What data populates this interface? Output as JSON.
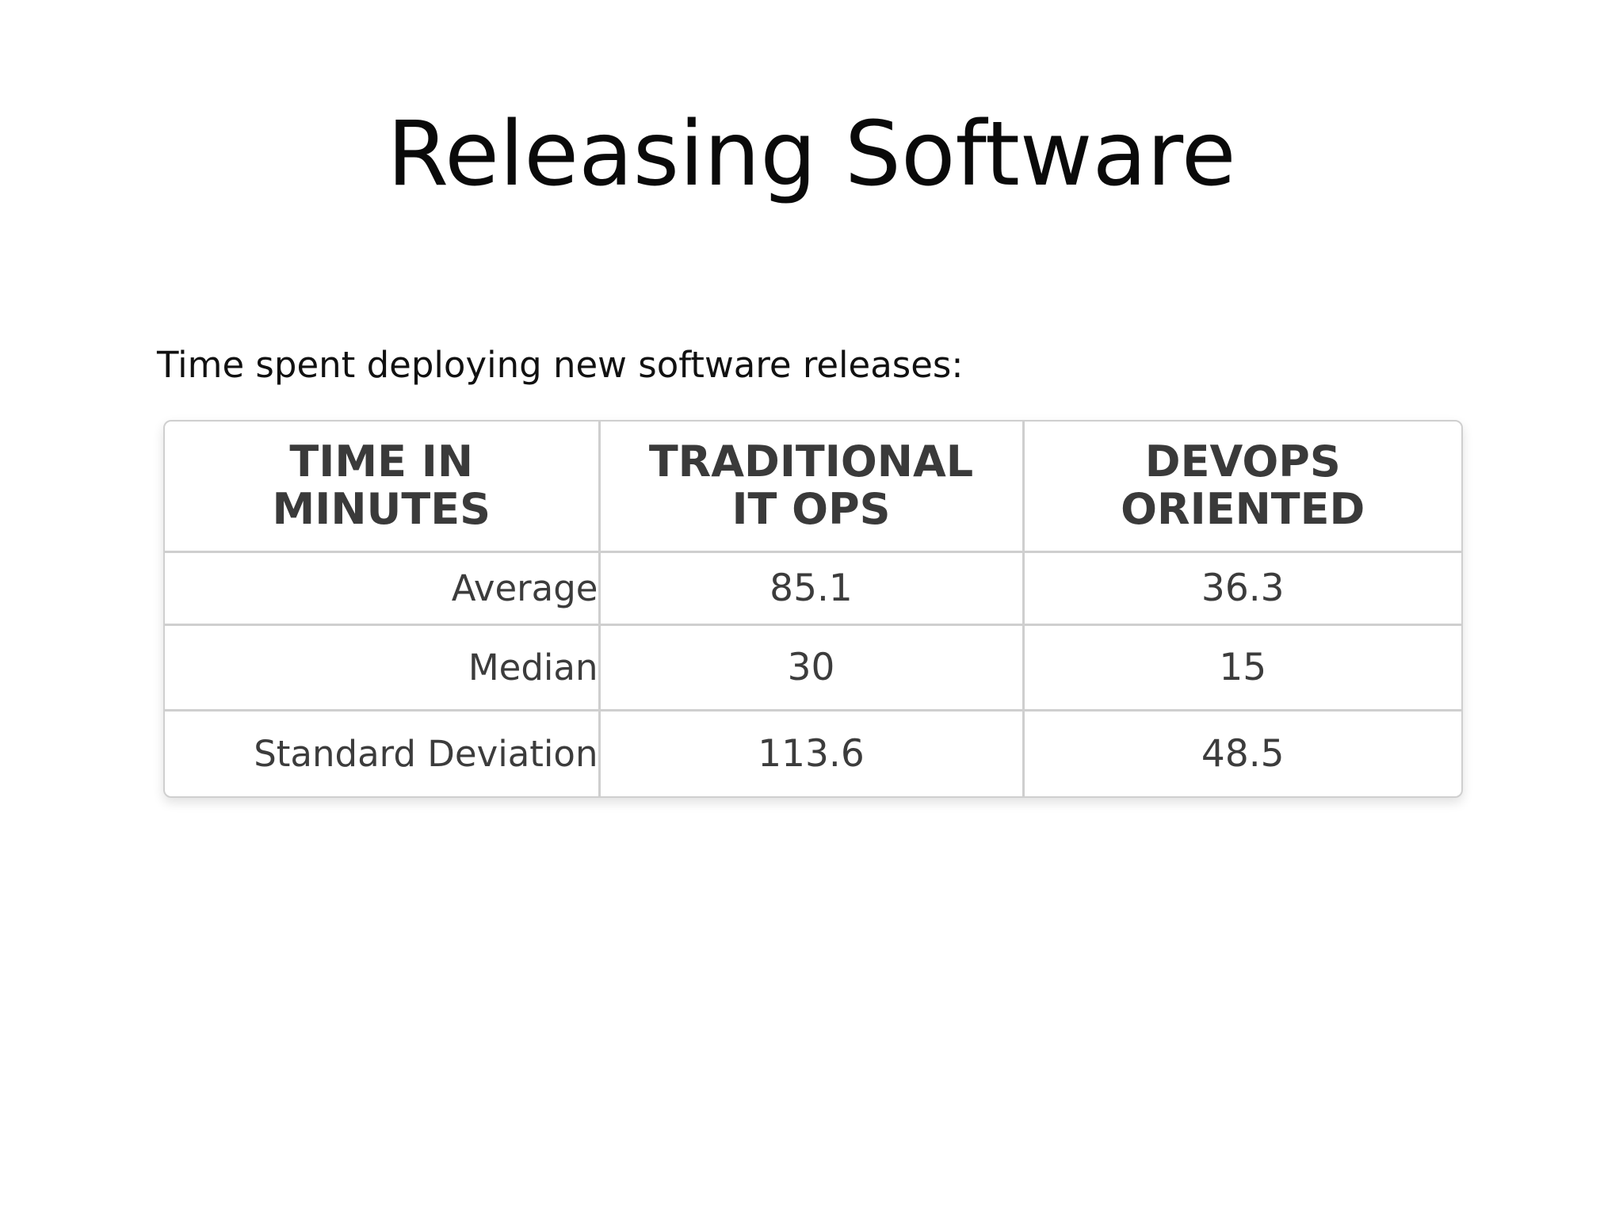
{
  "slide": {
    "title": "Releasing Software",
    "subtitle": "Time spent deploying new software releases:"
  },
  "table": {
    "headers": [
      [
        "TIME IN",
        "MINUTES"
      ],
      [
        "TRADITIONAL",
        "IT OPS"
      ],
      [
        "DEVOPS",
        "ORIENTED"
      ]
    ],
    "rows": [
      {
        "label": "Average",
        "traditional": "85.1",
        "devops": "36.3"
      },
      {
        "label": "Median",
        "traditional": "30",
        "devops": "15"
      },
      {
        "label": "Standard Deviation",
        "traditional": "113.6",
        "devops": "48.5"
      }
    ]
  },
  "colors": {
    "title_text": "#0a0a0a",
    "table_text": "#3c3c3c",
    "table_border": "#cfcfcf",
    "background": "#ffffff"
  }
}
